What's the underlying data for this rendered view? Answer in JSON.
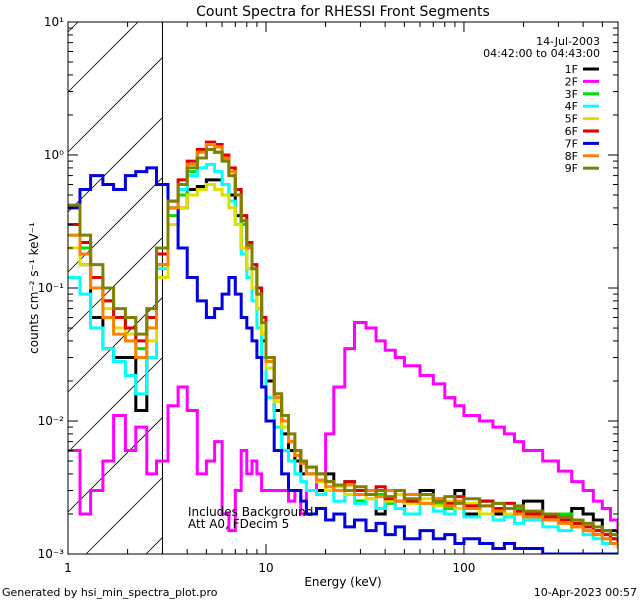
{
  "chart_data": {
    "type": "line",
    "title": "Count Spectra for RHESSI Front Segments",
    "xlabel": "Energy (keV)",
    "ylabel": "counts cm⁻² s⁻¹ keV⁻¹",
    "xscale": "log",
    "yscale": "log",
    "xlim": [
      1,
      600
    ],
    "ylim": [
      0.001,
      10
    ],
    "x_ticks": [
      "1",
      "10",
      "100"
    ],
    "y_ticks": [
      "10⁻³",
      "10⁻²",
      "10⁻¹",
      "10⁰",
      "10¹"
    ],
    "date": "14-Jul-2003",
    "time_range": "04:42:00 to 04:43:00",
    "annotation_lines": [
      "Includes Background",
      "Att A0, FDecim 5"
    ],
    "footer_left": "Generated by hsi_min_spectra_plot.pro",
    "footer_right": "10-Apr-2023 00:57",
    "hatched_region": [
      1,
      3
    ],
    "legend_position": "top-right",
    "series": [
      {
        "name": "1F",
        "color": "#000000",
        "x": [
          1.0,
          1.15,
          1.3,
          1.5,
          1.7,
          1.95,
          2.2,
          2.5,
          2.8,
          3.2,
          3.6,
          4.0,
          4.5,
          5.0,
          5.5,
          6.0,
          6.5,
          7.0,
          7.5,
          8.0,
          8.5,
          9.0,
          9.5,
          10,
          11,
          12,
          13,
          14,
          15,
          16,
          18,
          20,
          22,
          25,
          28,
          32,
          36,
          40,
          45,
          50,
          60,
          70,
          80,
          90,
          100,
          120,
          140,
          160,
          180,
          200,
          250,
          300,
          350,
          400,
          450,
          500,
          550,
          600
        ],
        "y": [
          0.3,
          0.15,
          0.06,
          0.035,
          0.03,
          0.03,
          0.012,
          0.03,
          0.12,
          0.3,
          0.4,
          0.55,
          0.58,
          0.65,
          0.65,
          0.6,
          0.5,
          0.35,
          0.2,
          0.14,
          0.1,
          0.07,
          0.04,
          0.02,
          0.012,
          0.008,
          0.006,
          0.005,
          0.004,
          0.004,
          0.003,
          0.004,
          0.003,
          0.003,
          0.0025,
          0.003,
          0.002,
          0.003,
          0.0025,
          0.002,
          0.003,
          0.0025,
          0.002,
          0.003,
          0.002,
          0.0025,
          0.002,
          0.002,
          0.0022,
          0.0025,
          0.002,
          0.0018,
          0.0022,
          0.002,
          0.0018,
          0.0015,
          0.0015,
          0.0012
        ]
      },
      {
        "name": "2F",
        "color": "#ff00ff",
        "x": [
          1.0,
          1.15,
          1.3,
          1.5,
          1.7,
          1.95,
          2.2,
          2.5,
          2.8,
          3.2,
          3.6,
          4.0,
          4.5,
          5.0,
          5.5,
          6.0,
          6.5,
          7.0,
          7.5,
          8.0,
          8.5,
          9.0,
          9.5,
          10,
          11,
          12,
          13,
          14,
          15,
          16,
          18,
          20,
          22,
          25,
          28,
          32,
          36,
          40,
          45,
          50,
          60,
          70,
          80,
          90,
          100,
          120,
          140,
          160,
          180,
          200,
          250,
          300,
          350,
          400,
          450,
          500,
          550,
          600
        ],
        "y": [
          0.006,
          0.002,
          0.003,
          0.005,
          0.011,
          0.006,
          0.009,
          0.004,
          0.005,
          0.013,
          0.018,
          0.012,
          0.004,
          0.005,
          0.007,
          0.002,
          0.0015,
          0.003,
          0.006,
          0.004,
          0.005,
          0.004,
          0.003,
          0.003,
          0.003,
          0.003,
          0.0025,
          0.003,
          0.002,
          0.003,
          0.0035,
          0.008,
          0.018,
          0.035,
          0.055,
          0.05,
          0.04,
          0.034,
          0.03,
          0.026,
          0.022,
          0.019,
          0.015,
          0.013,
          0.011,
          0.01,
          0.009,
          0.008,
          0.007,
          0.006,
          0.005,
          0.0042,
          0.0035,
          0.003,
          0.0025,
          0.0022,
          0.0018,
          0.0015
        ]
      },
      {
        "name": "3F",
        "color": "#00e000",
        "x": [
          1.0,
          1.15,
          1.3,
          1.5,
          1.7,
          1.95,
          2.2,
          2.5,
          2.8,
          3.2,
          3.6,
          4.0,
          4.5,
          5.0,
          5.5,
          6.0,
          6.5,
          7.0,
          7.5,
          8.0,
          8.5,
          9.0,
          9.5,
          10,
          11,
          12,
          13,
          14,
          15,
          16,
          18,
          20,
          22,
          25,
          28,
          32,
          36,
          40,
          45,
          50,
          60,
          70,
          80,
          90,
          100,
          120,
          140,
          160,
          180,
          200,
          250,
          300,
          350,
          400,
          450,
          500,
          550,
          600
        ],
        "y": [
          0.25,
          0.2,
          0.12,
          0.08,
          0.06,
          0.05,
          0.035,
          0.05,
          0.15,
          0.35,
          0.5,
          0.75,
          0.95,
          1.1,
          1.05,
          0.9,
          0.7,
          0.5,
          0.3,
          0.2,
          0.14,
          0.1,
          0.06,
          0.03,
          0.015,
          0.01,
          0.007,
          0.006,
          0.005,
          0.004,
          0.0035,
          0.003,
          0.003,
          0.0035,
          0.0025,
          0.003,
          0.0028,
          0.0024,
          0.003,
          0.0025,
          0.0028,
          0.0024,
          0.0022,
          0.0025,
          0.0022,
          0.002,
          0.0024,
          0.002,
          0.0022,
          0.002,
          0.0018,
          0.002,
          0.0017,
          0.0016,
          0.0015,
          0.0014,
          0.0013,
          0.0012
        ]
      },
      {
        "name": "4F",
        "color": "#00ffff",
        "x": [
          1.0,
          1.15,
          1.3,
          1.5,
          1.7,
          1.95,
          2.2,
          2.5,
          2.8,
          3.2,
          3.6,
          4.0,
          4.5,
          5.0,
          5.5,
          6.0,
          6.5,
          7.0,
          7.5,
          8.0,
          8.5,
          9.0,
          9.5,
          10,
          11,
          12,
          13,
          14,
          15,
          16,
          18,
          20,
          22,
          25,
          28,
          32,
          36,
          40,
          45,
          50,
          60,
          70,
          80,
          90,
          100,
          120,
          140,
          160,
          180,
          200,
          250,
          300,
          350,
          400,
          450,
          500,
          550,
          600
        ],
        "y": [
          0.12,
          0.09,
          0.05,
          0.035,
          0.028,
          0.022,
          0.016,
          0.03,
          0.14,
          0.4,
          0.55,
          0.7,
          0.8,
          0.85,
          0.75,
          0.6,
          0.45,
          0.3,
          0.18,
          0.12,
          0.08,
          0.05,
          0.03,
          0.015,
          0.009,
          0.006,
          0.005,
          0.004,
          0.0035,
          0.003,
          0.0028,
          0.003,
          0.0025,
          0.0028,
          0.0024,
          0.0026,
          0.0022,
          0.0025,
          0.0022,
          0.002,
          0.0024,
          0.0021,
          0.002,
          0.0022,
          0.0019,
          0.002,
          0.0018,
          0.0019,
          0.0017,
          0.0018,
          0.0016,
          0.0015,
          0.0016,
          0.0014,
          0.0013,
          0.0012,
          0.0012,
          0.0011
        ]
      },
      {
        "name": "5F",
        "color": "#e0e000",
        "x": [
          1.0,
          1.15,
          1.3,
          1.5,
          1.7,
          1.95,
          2.2,
          2.5,
          2.8,
          3.2,
          3.6,
          4.0,
          4.5,
          5.0,
          5.5,
          6.0,
          6.5,
          7.0,
          7.5,
          8.0,
          8.5,
          9.0,
          9.5,
          10,
          11,
          12,
          13,
          14,
          15,
          16,
          18,
          20,
          22,
          25,
          28,
          32,
          36,
          40,
          45,
          50,
          60,
          70,
          80,
          90,
          100,
          120,
          140,
          160,
          180,
          200,
          250,
          300,
          350,
          400,
          450,
          500,
          550,
          600
        ],
        "y": [
          0.2,
          0.15,
          0.1,
          0.07,
          0.05,
          0.045,
          0.03,
          0.04,
          0.12,
          0.3,
          0.4,
          0.5,
          0.55,
          0.6,
          0.55,
          0.5,
          0.4,
          0.3,
          0.2,
          0.14,
          0.1,
          0.07,
          0.045,
          0.025,
          0.014,
          0.009,
          0.007,
          0.006,
          0.005,
          0.004,
          0.0035,
          0.003,
          0.0032,
          0.0028,
          0.003,
          0.0026,
          0.003,
          0.0025,
          0.0028,
          0.0024,
          0.0026,
          0.0023,
          0.0025,
          0.0022,
          0.0024,
          0.002,
          0.0022,
          0.002,
          0.0021,
          0.0019,
          0.0018,
          0.0017,
          0.0016,
          0.0015,
          0.0014,
          0.0013,
          0.0012,
          0.0011
        ]
      },
      {
        "name": "6F",
        "color": "#e00000",
        "x": [
          1.0,
          1.15,
          1.3,
          1.5,
          1.7,
          1.95,
          2.2,
          2.5,
          2.8,
          3.2,
          3.6,
          4.0,
          4.5,
          5.0,
          5.5,
          6.0,
          6.5,
          7.0,
          7.5,
          8.0,
          8.5,
          9.0,
          9.5,
          10,
          11,
          12,
          13,
          14,
          15,
          16,
          18,
          20,
          22,
          25,
          28,
          32,
          36,
          40,
          45,
          50,
          60,
          70,
          80,
          90,
          100,
          120,
          140,
          160,
          180,
          200,
          250,
          300,
          350,
          400,
          450,
          500,
          550,
          600
        ],
        "y": [
          0.3,
          0.22,
          0.12,
          0.08,
          0.06,
          0.05,
          0.04,
          0.06,
          0.18,
          0.45,
          0.65,
          0.9,
          1.1,
          1.25,
          1.2,
          1.0,
          0.8,
          0.55,
          0.35,
          0.22,
          0.15,
          0.1,
          0.06,
          0.03,
          0.016,
          0.01,
          0.007,
          0.006,
          0.005,
          0.0045,
          0.004,
          0.0035,
          0.003,
          0.0035,
          0.003,
          0.0028,
          0.0032,
          0.0026,
          0.003,
          0.0025,
          0.0028,
          0.0026,
          0.0024,
          0.0027,
          0.0023,
          0.0025,
          0.0022,
          0.0024,
          0.0021,
          0.002,
          0.0019,
          0.0018,
          0.0017,
          0.0016,
          0.0015,
          0.0014,
          0.0013,
          0.0012
        ]
      },
      {
        "name": "7F",
        "color": "#0000e0",
        "x": [
          1.0,
          1.15,
          1.3,
          1.5,
          1.7,
          1.95,
          2.2,
          2.5,
          2.8,
          3.2,
          3.6,
          4.0,
          4.5,
          5.0,
          5.5,
          6.0,
          6.5,
          7.0,
          7.5,
          8.0,
          8.5,
          9.0,
          9.5,
          10,
          11,
          12,
          13,
          14,
          15,
          16,
          18,
          20,
          22,
          25,
          28,
          32,
          36,
          40,
          45,
          50,
          60,
          70,
          80,
          90,
          100,
          120,
          140,
          160,
          180,
          200,
          250,
          300,
          350,
          400,
          450,
          500,
          550,
          600
        ],
        "y": [
          0.4,
          0.55,
          0.7,
          0.6,
          0.55,
          0.7,
          0.75,
          0.8,
          0.6,
          0.4,
          0.2,
          0.12,
          0.08,
          0.06,
          0.07,
          0.09,
          0.12,
          0.09,
          0.06,
          0.05,
          0.04,
          0.03,
          0.018,
          0.01,
          0.006,
          0.004,
          0.003,
          0.003,
          0.0025,
          0.002,
          0.0022,
          0.0018,
          0.002,
          0.0016,
          0.0018,
          0.0015,
          0.0017,
          0.0014,
          0.0016,
          0.0013,
          0.0015,
          0.0013,
          0.0014,
          0.0012,
          0.0013,
          0.0012,
          0.0011,
          0.0012,
          0.0011,
          0.0011,
          0.001,
          0.001,
          0.001,
          0.001,
          0.001,
          0.001,
          0.001,
          0.001
        ]
      },
      {
        "name": "8F",
        "color": "#ff8000",
        "x": [
          1.0,
          1.15,
          1.3,
          1.5,
          1.7,
          1.95,
          2.2,
          2.5,
          2.8,
          3.2,
          3.6,
          4.0,
          4.5,
          5.0,
          5.5,
          6.0,
          6.5,
          7.0,
          7.5,
          8.0,
          8.5,
          9.0,
          9.5,
          10,
          11,
          12,
          13,
          14,
          15,
          16,
          18,
          20,
          22,
          25,
          28,
          32,
          36,
          40,
          45,
          50,
          60,
          70,
          80,
          90,
          100,
          120,
          140,
          160,
          180,
          200,
          250,
          300,
          350,
          400,
          450,
          500,
          550,
          600
        ],
        "y": [
          0.25,
          0.18,
          0.1,
          0.06,
          0.045,
          0.04,
          0.03,
          0.05,
          0.15,
          0.4,
          0.6,
          0.85,
          1.05,
          1.2,
          1.15,
          0.95,
          0.75,
          0.5,
          0.32,
          0.2,
          0.14,
          0.09,
          0.055,
          0.028,
          0.015,
          0.01,
          0.007,
          0.0055,
          0.0048,
          0.004,
          0.0036,
          0.0032,
          0.003,
          0.0033,
          0.0028,
          0.003,
          0.0027,
          0.003,
          0.0025,
          0.0028,
          0.0024,
          0.0026,
          0.0023,
          0.0025,
          0.0022,
          0.0023,
          0.0021,
          0.0022,
          0.002,
          0.0019,
          0.0018,
          0.0017,
          0.0016,
          0.0015,
          0.0014,
          0.0013,
          0.0012,
          0.0011
        ]
      },
      {
        "name": "9F",
        "color": "#808000",
        "x": [
          1.0,
          1.15,
          1.3,
          1.5,
          1.7,
          1.95,
          2.2,
          2.5,
          2.8,
          3.2,
          3.6,
          4.0,
          4.5,
          5.0,
          5.5,
          6.0,
          6.5,
          7.0,
          7.5,
          8.0,
          8.5,
          9.0,
          9.5,
          10,
          11,
          12,
          13,
          14,
          15,
          16,
          18,
          20,
          22,
          25,
          28,
          32,
          36,
          40,
          45,
          50,
          60,
          70,
          80,
          90,
          100,
          120,
          140,
          160,
          180,
          200,
          250,
          300,
          350,
          400,
          450,
          500,
          550,
          600
        ],
        "y": [
          0.42,
          0.25,
          0.15,
          0.1,
          0.07,
          0.06,
          0.045,
          0.07,
          0.2,
          0.45,
          0.6,
          0.8,
          0.95,
          1.1,
          1.05,
          0.9,
          0.7,
          0.5,
          0.32,
          0.21,
          0.14,
          0.09,
          0.055,
          0.03,
          0.016,
          0.011,
          0.008,
          0.006,
          0.005,
          0.0045,
          0.004,
          0.0035,
          0.0033,
          0.003,
          0.0032,
          0.0028,
          0.003,
          0.0027,
          0.003,
          0.0026,
          0.0028,
          0.0025,
          0.0027,
          0.0024,
          0.0026,
          0.0023,
          0.0024,
          0.0022,
          0.0023,
          0.0021,
          0.002,
          0.0019,
          0.0018,
          0.0017,
          0.0016,
          0.0015,
          0.0014,
          0.0013
        ]
      }
    ]
  }
}
